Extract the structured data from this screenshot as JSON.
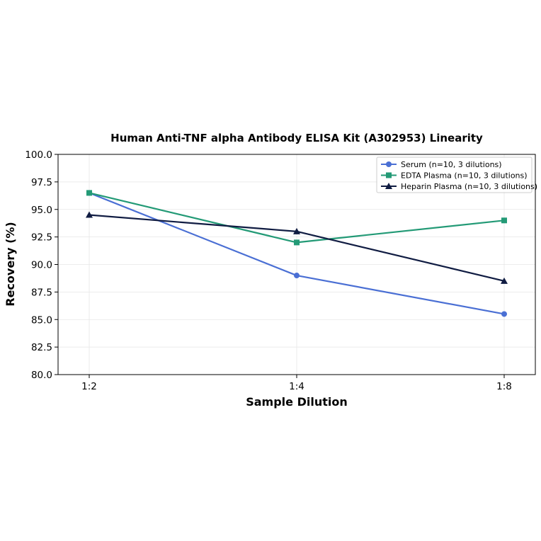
{
  "chart_data": {
    "type": "line",
    "title": "Human Anti-TNF alpha Antibody ELISA Kit (A302953) Linearity",
    "xlabel": "Sample Dilution",
    "ylabel": "Recovery (%)",
    "categories": [
      "1:2",
      "1:4",
      "1:8"
    ],
    "ylim": [
      80.0,
      100.0
    ],
    "yticks": [
      "80.0",
      "82.5",
      "85.0",
      "87.5",
      "90.0",
      "92.5",
      "95.0",
      "97.5",
      "100.0"
    ],
    "grid": true,
    "legend_position": "top-right",
    "series": [
      {
        "name": "Serum (n=10, 3 dilutions)",
        "values": [
          96.5,
          89.0,
          85.5
        ],
        "color": "#4a6fd4",
        "marker": "circle"
      },
      {
        "name": "EDTA Plasma (n=10, 3 dilutions)",
        "values": [
          96.5,
          92.0,
          94.0
        ],
        "color": "#239a76",
        "marker": "square"
      },
      {
        "name": "Heparin Plasma (n=10, 3 dilutions)",
        "values": [
          94.5,
          93.0,
          88.5
        ],
        "color": "#101c42",
        "marker": "triangle"
      }
    ]
  }
}
